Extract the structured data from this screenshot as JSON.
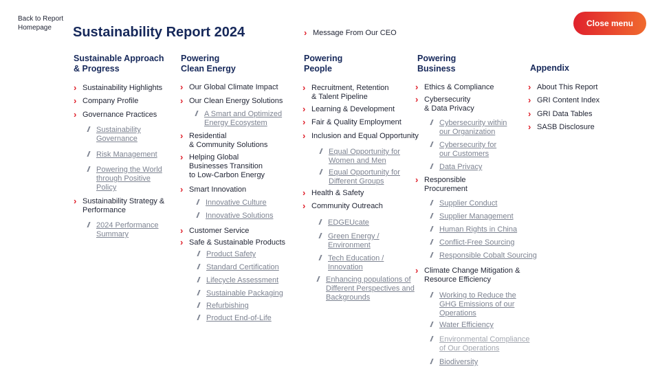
{
  "header": {
    "back_link": "Back to Report\nHomepage",
    "title": "Sustainability Report 2024",
    "ceo_link": "Message From Our CEO",
    "close_label": "Close menu"
  },
  "col1": {
    "heading": "Sustainable Approach\n& Progress",
    "items": [
      "Sustainability Highlights",
      "Company Profile",
      "Governance Practices",
      "Sustainability Strategy &\nPerformance"
    ],
    "subs": [
      "Sustainability\nGovernance",
      "Risk Management",
      "Powering the World\nthrough Positive\nPolicy",
      "2024 Performance\nSummary"
    ]
  },
  "col2": {
    "heading": "Powering\nClean Energy",
    "items": [
      "Our Global Climate Impact",
      "Our Clean Energy Solutions",
      "Residential\n& Community Solutions",
      "Helping Global\nBusinesses Transition\nto Low-Carbon Energy",
      "Smart Innovation",
      "Customer Service",
      "Safe & Sustainable Products"
    ],
    "subs": [
      "A Smart and Optimized\nEnergy Ecosystem",
      "Innovative Culture",
      "Innovative Solutions",
      "Product Safety",
      "Standard Certification",
      "Lifecycle Assessment",
      "Sustainable Packaging",
      "Refurbishing",
      "Product End-of-Life"
    ]
  },
  "col3": {
    "heading": "Powering\nPeople",
    "items": [
      "Recruitment, Retention\n& Talent Pipeline",
      "Learning & Development",
      "Fair & Quality Employment",
      "Inclusion and Equal Opportunity",
      "Health & Safety",
      "Community Outreach"
    ],
    "subs": [
      "Equal Opportunity for\nWomen and Men",
      "Equal Opportunity for\nDifferent Groups",
      "EDGEUcate",
      "Green Energy /\nEnvironment",
      "Tech Education /\nInnovation",
      "Enhancing populations of\nDifferent Perspectives and\nBackgrounds"
    ]
  },
  "col4": {
    "heading": "Powering\nBusiness",
    "items": [
      "Ethics & Compliance",
      "Cybersecurity\n& Data Privacy",
      "Responsible\nProcurement",
      "Climate Change Mitigation &\nResource Efficiency"
    ],
    "subs": [
      "Cybersecurity within\nour Organization",
      "Cybersecurity for\nour Customers",
      "Data Privacy",
      "Supplier Conduct",
      "Supplier Management",
      "Human Rights in China",
      "Conflict-Free Sourcing",
      "Responsible Cobalt Sourcing",
      "Working to Reduce the\nGHG Emissions of our\nOperations",
      "Water Efficiency",
      "Environmental Compliance\nof Our Operations",
      "Biodiversity"
    ]
  },
  "col5": {
    "heading": "Appendix",
    "items": [
      "About This Report",
      "GRI Content Index",
      "GRI Data Tables",
      "SASB Disclosure"
    ]
  }
}
